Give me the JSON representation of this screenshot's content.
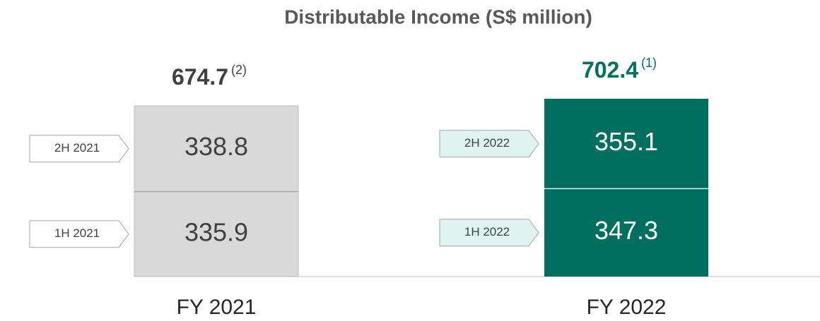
{
  "chart_data": {
    "type": "bar",
    "stacked": true,
    "title": "Distributable Income (S$ million)",
    "categories": [
      "FY 2021",
      "FY 2022"
    ],
    "totals": [
      674.7,
      702.4
    ],
    "total_notes": [
      "(2)",
      "(1)"
    ],
    "total_colors": [
      "#404040",
      "#00705f"
    ],
    "bar_colors": [
      "#d9d9d9",
      "#006f5f"
    ],
    "segment_text_colors": [
      "#404040",
      "#ffffff"
    ],
    "tag_fills": [
      "#ffffff",
      "#dff3f0"
    ],
    "series": [
      {
        "labels": [
          "1H 2021",
          "1H 2022"
        ],
        "values": [
          335.9,
          347.3
        ]
      },
      {
        "labels": [
          "2H 2021",
          "2H 2022"
        ],
        "values": [
          338.8,
          355.1
        ]
      }
    ]
  }
}
